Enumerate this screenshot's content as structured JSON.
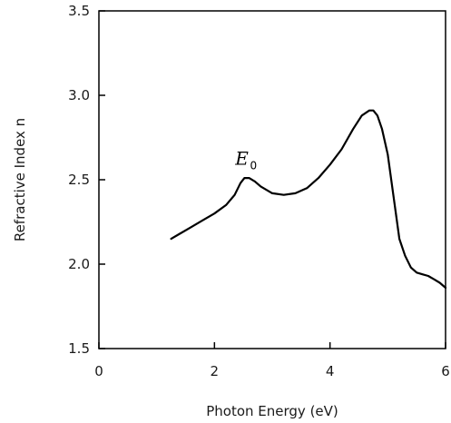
{
  "chart_data": {
    "type": "line",
    "title": "",
    "xlabel": "Photon Energy (eV)",
    "ylabel": "Refractive Index  n",
    "xlim": [
      0,
      6
    ],
    "ylim": [
      1.5,
      3.5
    ],
    "xticks": [
      0,
      2,
      4,
      6
    ],
    "xtick_labels": [
      "0",
      "2",
      "4",
      "6"
    ],
    "yticks": [
      1.5,
      2.0,
      2.5,
      3.0,
      3.5
    ],
    "ytick_labels": [
      "1.5",
      "2.0",
      "2.5",
      "3.0",
      "3.5"
    ],
    "grid": false,
    "legend": "none",
    "line_color": "#000000",
    "annotations": [
      {
        "text": "E",
        "subscript": "0",
        "x": 2.6,
        "y": 2.62
      }
    ],
    "series": [
      {
        "x": [
          1.25,
          1.4,
          1.6,
          1.8,
          2.0,
          2.2,
          2.35,
          2.45,
          2.52,
          2.6,
          2.7,
          2.8,
          3.0,
          3.2,
          3.4,
          3.6,
          3.8,
          4.0,
          4.2,
          4.4,
          4.55,
          4.68,
          4.75,
          4.82,
          4.9,
          5.0,
          5.1,
          5.2,
          5.3,
          5.4,
          5.5,
          5.6,
          5.7,
          5.8,
          5.9,
          6.0
        ],
        "values": [
          2.15,
          2.18,
          2.22,
          2.26,
          2.3,
          2.35,
          2.41,
          2.48,
          2.51,
          2.51,
          2.49,
          2.46,
          2.42,
          2.41,
          2.42,
          2.45,
          2.51,
          2.59,
          2.68,
          2.8,
          2.88,
          2.91,
          2.91,
          2.88,
          2.8,
          2.65,
          2.4,
          2.15,
          2.05,
          1.98,
          1.95,
          1.94,
          1.93,
          1.91,
          1.89,
          1.86
        ]
      }
    ]
  }
}
